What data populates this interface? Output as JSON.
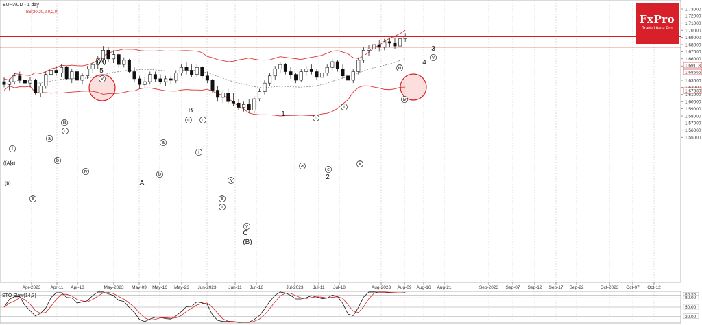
{
  "header": {
    "symbol_label": "EURAUD - 1 day",
    "indicator_label": "BB(20,20,2,0,2,0)"
  },
  "brand": {
    "name": "FxPro",
    "tagline": "Trade Like a Pro"
  },
  "chart_data": {
    "type": "candlestick",
    "title": "EURAUD - 1 day",
    "ylim": [
      1.545,
      1.735
    ],
    "y_ticks": [
      "1.73000",
      "1.72000",
      "1.71000",
      "1.70000",
      "1.69000",
      "1.68000",
      "1.67000",
      "1.66000",
      "1.65000",
      "1.64000",
      "1.63000",
      "1.62000",
      "1.61000",
      "1.60000",
      "1.59000",
      "1.58000",
      "1.57000",
      "1.56000",
      "1.55000"
    ],
    "x_ticks": [
      "Apr-2023",
      "Apr-11",
      "Apr-18",
      "May-2023",
      "May-09",
      "May-16",
      "May-23",
      "Jun-2023",
      "Jun-11",
      "Jun-18",
      "Jul-2023",
      "Jul-11",
      "Jul-18",
      "Aug-2023",
      "Aug-09",
      "Aug-16",
      "Aug-21",
      "Sep-2023",
      "Sep-07",
      "Sep-12",
      "Sep-17",
      "Sep-22",
      "Oct-2023",
      "Oct-07",
      "Oct-12"
    ],
    "price_labels": [
      "1.69118",
      "1.68665",
      "1.67380"
    ],
    "resistance_levels": [
      1.6912,
      1.6765
    ],
    "ohlc": [
      [
        1.628,
        1.634,
        1.62,
        1.624
      ],
      [
        1.624,
        1.632,
        1.616,
        1.628
      ],
      [
        1.628,
        1.64,
        1.624,
        1.636
      ],
      [
        1.636,
        1.642,
        1.626,
        1.63
      ],
      [
        1.63,
        1.636,
        1.622,
        1.626
      ],
      [
        1.626,
        1.634,
        1.62,
        1.63
      ],
      [
        1.63,
        1.632,
        1.61,
        1.612
      ],
      [
        1.612,
        1.626,
        1.606,
        1.622
      ],
      [
        1.622,
        1.642,
        1.618,
        1.638
      ],
      [
        1.638,
        1.648,
        1.634,
        1.644
      ],
      [
        1.644,
        1.65,
        1.636,
        1.64
      ],
      [
        1.64,
        1.652,
        1.634,
        1.648
      ],
      [
        1.648,
        1.65,
        1.63,
        1.632
      ],
      [
        1.632,
        1.646,
        1.626,
        1.642
      ],
      [
        1.642,
        1.646,
        1.628,
        1.63
      ],
      [
        1.63,
        1.64,
        1.624,
        1.636
      ],
      [
        1.636,
        1.65,
        1.632,
        1.646
      ],
      [
        1.646,
        1.656,
        1.64,
        1.652
      ],
      [
        1.652,
        1.664,
        1.646,
        1.66
      ],
      [
        1.66,
        1.678,
        1.656,
        1.672
      ],
      [
        1.672,
        1.676,
        1.656,
        1.66
      ],
      [
        1.66,
        1.672,
        1.654,
        1.666
      ],
      [
        1.666,
        1.668,
        1.648,
        1.652
      ],
      [
        1.652,
        1.662,
        1.648,
        1.658
      ],
      [
        1.658,
        1.66,
        1.64,
        1.642
      ],
      [
        1.642,
        1.648,
        1.628,
        1.632
      ],
      [
        1.632,
        1.636,
        1.618,
        1.624
      ],
      [
        1.624,
        1.634,
        1.62,
        1.628
      ],
      [
        1.628,
        1.642,
        1.624,
        1.638
      ],
      [
        1.638,
        1.642,
        1.628,
        1.632
      ],
      [
        1.632,
        1.638,
        1.624,
        1.628
      ],
      [
        1.628,
        1.636,
        1.622,
        1.632
      ],
      [
        1.632,
        1.636,
        1.624,
        1.63
      ],
      [
        1.63,
        1.644,
        1.626,
        1.64
      ],
      [
        1.64,
        1.652,
        1.636,
        1.648
      ],
      [
        1.648,
        1.656,
        1.638,
        1.644
      ],
      [
        1.644,
        1.652,
        1.634,
        1.638
      ],
      [
        1.638,
        1.652,
        1.634,
        1.648
      ],
      [
        1.648,
        1.65,
        1.632,
        1.636
      ],
      [
        1.636,
        1.642,
        1.626,
        1.63
      ],
      [
        1.63,
        1.632,
        1.612,
        1.616
      ],
      [
        1.616,
        1.622,
        1.6,
        1.606
      ],
      [
        1.606,
        1.616,
        1.598,
        1.612
      ],
      [
        1.612,
        1.618,
        1.596,
        1.6
      ],
      [
        1.6,
        1.612,
        1.594,
        1.598
      ],
      [
        1.598,
        1.604,
        1.588,
        1.592
      ],
      [
        1.592,
        1.6,
        1.586,
        1.596
      ],
      [
        1.596,
        1.604,
        1.584,
        1.588
      ],
      [
        1.588,
        1.608,
        1.584,
        1.604
      ],
      [
        1.604,
        1.618,
        1.6,
        1.614
      ],
      [
        1.614,
        1.63,
        1.61,
        1.626
      ],
      [
        1.626,
        1.64,
        1.622,
        1.636
      ],
      [
        1.636,
        1.65,
        1.63,
        1.646
      ],
      [
        1.646,
        1.656,
        1.64,
        1.652
      ],
      [
        1.652,
        1.654,
        1.638,
        1.642
      ],
      [
        1.642,
        1.648,
        1.632,
        1.638
      ],
      [
        1.638,
        1.64,
        1.626,
        1.63
      ],
      [
        1.63,
        1.646,
        1.628,
        1.642
      ],
      [
        1.642,
        1.65,
        1.636,
        1.646
      ],
      [
        1.646,
        1.652,
        1.638,
        1.642
      ],
      [
        1.642,
        1.646,
        1.63,
        1.634
      ],
      [
        1.634,
        1.644,
        1.63,
        1.64
      ],
      [
        1.64,
        1.652,
        1.636,
        1.648
      ],
      [
        1.648,
        1.66,
        1.644,
        1.656
      ],
      [
        1.656,
        1.658,
        1.642,
        1.646
      ],
      [
        1.646,
        1.652,
        1.632,
        1.636
      ],
      [
        1.636,
        1.642,
        1.626,
        1.63
      ],
      [
        1.63,
        1.646,
        1.626,
        1.642
      ],
      [
        1.642,
        1.662,
        1.638,
        1.658
      ],
      [
        1.658,
        1.676,
        1.654,
        1.672
      ],
      [
        1.672,
        1.68,
        1.664,
        1.674
      ],
      [
        1.674,
        1.684,
        1.668,
        1.68
      ],
      [
        1.68,
        1.686,
        1.67,
        1.676
      ],
      [
        1.676,
        1.688,
        1.672,
        1.684
      ],
      [
        1.684,
        1.69,
        1.676,
        1.682
      ],
      [
        1.682,
        1.69,
        1.674,
        1.678
      ],
      [
        1.678,
        1.692,
        1.676,
        1.688
      ],
      [
        1.688,
        1.696,
        1.684,
        1.692
      ]
    ],
    "bollinger": {
      "upper": "solid red",
      "middle": "dashed gray",
      "lower": "solid red"
    },
    "wave_labels": [
      {
        "text": "(A)",
        "kind": "big"
      },
      {
        "text": "5",
        "kind": "big"
      },
      {
        "text": "B",
        "kind": "big"
      },
      {
        "text": "A",
        "kind": "big"
      },
      {
        "text": "C",
        "kind": "big"
      },
      {
        "text": "(B)",
        "kind": "big"
      },
      {
        "text": "1",
        "kind": "big"
      },
      {
        "text": "2",
        "kind": "big"
      },
      {
        "text": "3",
        "kind": "big"
      },
      {
        "text": "4",
        "kind": "big"
      },
      {
        "text": "i",
        "kind": "circle"
      },
      {
        "text": "a",
        "kind": "circle"
      },
      {
        "text": "c",
        "kind": "circle"
      },
      {
        "text": "b",
        "kind": "circle"
      },
      {
        "text": "ii",
        "kind": "circle"
      },
      {
        "text": "iii",
        "kind": "circle"
      },
      {
        "text": "iv",
        "kind": "circle"
      },
      {
        "text": "v",
        "kind": "circle"
      }
    ],
    "oscillator": {
      "label": "STO Slow(14,3)",
      "levels": [
        "88.20",
        "80.00",
        "50.00",
        "20.00"
      ],
      "ylim": [
        0,
        100
      ]
    }
  }
}
